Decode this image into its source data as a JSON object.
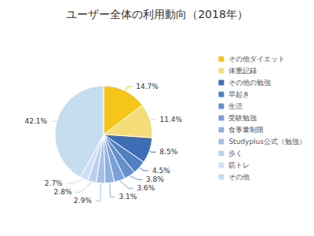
{
  "chart_data": {
    "type": "pie",
    "title": "ユーザー全体の利用動向（2018年）",
    "categories": [
      "その他ダイエット",
      "体重記録",
      "その他の勉強",
      "早起き",
      "生活",
      "受験勉強",
      "食事量制限",
      "Studyplus公式（勉強）",
      "歩く",
      "筋トレ",
      "その他"
    ],
    "values": [
      14.7,
      11.4,
      8.5,
      4.5,
      3.8,
      3.6,
      3.1,
      2.9,
      2.8,
      2.7,
      42.1
    ],
    "value_labels": [
      "14.7%",
      "11.4%",
      "8.5%",
      "4.5%",
      "3.8%",
      "3.6%",
      "3.1%",
      "2.9%",
      "2.8%",
      "2.7%",
      "42.1%"
    ],
    "colors": [
      "#F5C518",
      "#F5DC78",
      "#3D6DB5",
      "#5080C0",
      "#6590CC",
      "#7AA0D8",
      "#90B0E0",
      "#A5C0E8",
      "#BAD0EF",
      "#CFE0F5",
      "#C5DDEF"
    ],
    "data_labels": true,
    "legend": "right"
  }
}
